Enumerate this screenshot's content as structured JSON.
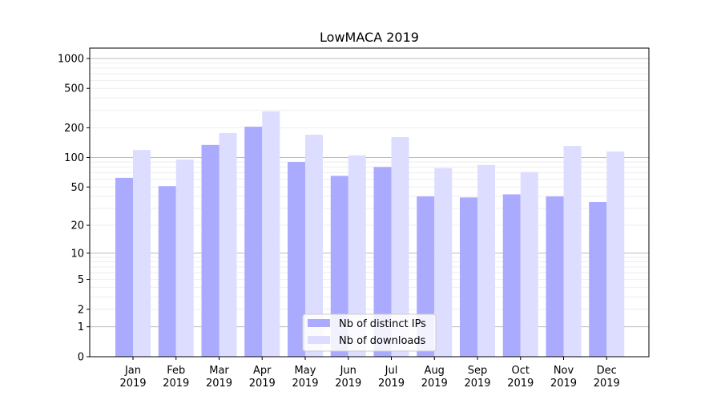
{
  "chart_data": {
    "type": "bar",
    "title": "LowMACA 2019",
    "xlabel": "",
    "ylabel": "",
    "yscale": "log10(v+1)",
    "ylim": [
      0,
      1200
    ],
    "yticks": [
      0,
      1,
      2,
      5,
      10,
      20,
      50,
      100,
      200,
      500,
      1000
    ],
    "ytick_labels": [
      "0",
      "1",
      "2",
      "5",
      "10",
      "20",
      "50",
      "100",
      "200",
      "500",
      "1000"
    ],
    "categories": [
      "Jan\n2019",
      "Feb\n2019",
      "Mar\n2019",
      "Apr\n2019",
      "May\n2019",
      "Jun\n2019",
      "Jul\n2019",
      "Aug\n2019",
      "Sep\n2019",
      "Oct\n2019",
      "Nov\n2019",
      "Dec\n2019"
    ],
    "category_lines": [
      [
        "Jan",
        "2019"
      ],
      [
        "Feb",
        "2019"
      ],
      [
        "Mar",
        "2019"
      ],
      [
        "Apr",
        "2019"
      ],
      [
        "May",
        "2019"
      ],
      [
        "Jun",
        "2019"
      ],
      [
        "Jul",
        "2019"
      ],
      [
        "Aug",
        "2019"
      ],
      [
        "Sep",
        "2019"
      ],
      [
        "Oct",
        "2019"
      ],
      [
        "Nov",
        "2019"
      ],
      [
        "Dec",
        "2019"
      ]
    ],
    "series": [
      {
        "name": "Nb of distinct IPs",
        "color": "#aaaaff",
        "values": [
          62,
          51,
          134,
          205,
          90,
          65,
          80,
          40,
          39,
          42,
          40,
          35
        ]
      },
      {
        "name": "Nb of downloads",
        "color": "#ddddff",
        "values": [
          119,
          95,
          177,
          293,
          170,
          105,
          161,
          78,
          84,
          71,
          131,
          115
        ]
      }
    ],
    "grid": true,
    "legend_position": "lower-center"
  }
}
